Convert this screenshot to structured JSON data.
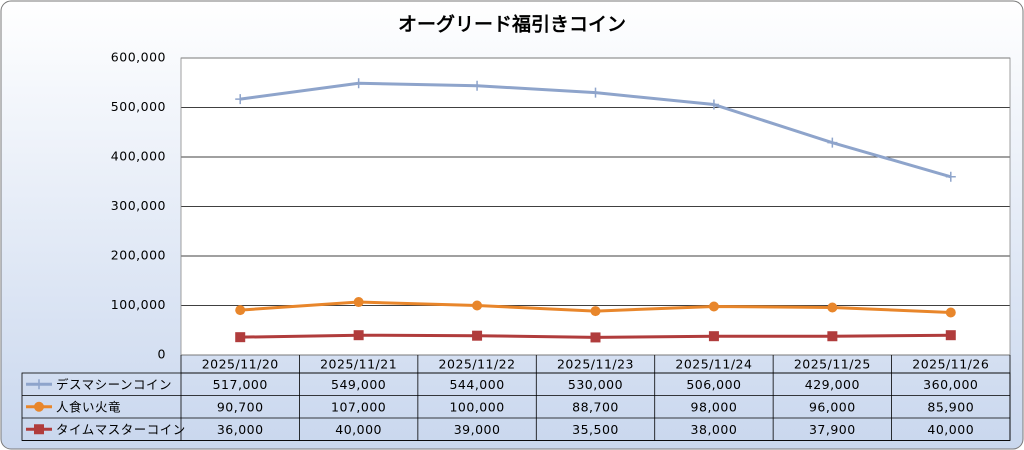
{
  "chart_data": {
    "type": "line",
    "title": "オーグリード福引きコイン",
    "categories": [
      "2025/11/20",
      "2025/11/21",
      "2025/11/22",
      "2025/11/23",
      "2025/11/24",
      "2025/11/25",
      "2025/11/26"
    ],
    "series": [
      {
        "name": "デスマシーンコイン",
        "color": "#8ea4cb",
        "marker": "plus",
        "values": [
          517000,
          549000,
          544000,
          530000,
          506000,
          429000,
          360000
        ],
        "value_labels": [
          "517,000",
          "549,000",
          "544,000",
          "530,000",
          "506,000",
          "429,000",
          "360,000"
        ]
      },
      {
        "name": "人食い火竜",
        "color": "#e8862b",
        "marker": "circle",
        "values": [
          90700,
          107000,
          100000,
          88700,
          98000,
          96000,
          85900
        ],
        "value_labels": [
          "90,700",
          "107,000",
          "100,000",
          "88,700",
          "98,000",
          "96,000",
          "85,900"
        ]
      },
      {
        "name": "タイムマスターコイン",
        "color": "#b03c3c",
        "marker": "square",
        "values": [
          36000,
          40000,
          39000,
          35500,
          38000,
          37900,
          40000
        ],
        "value_labels": [
          "36,000",
          "40,000",
          "39,000",
          "35,500",
          "38,000",
          "37,900",
          "40,000"
        ]
      }
    ],
    "ylim": [
      0,
      600000
    ],
    "yticks": [
      0,
      {
        "value": 100000,
        "label": "100,000"
      },
      {
        "value": 200000,
        "label": "200,000"
      },
      {
        "value": 300000,
        "label": "300,000"
      },
      {
        "value": 400000,
        "label": "400,000"
      },
      {
        "value": 500000,
        "label": "500,000"
      },
      {
        "value": 600000,
        "label": "600,000"
      }
    ],
    "grid": true,
    "data_table": true
  }
}
